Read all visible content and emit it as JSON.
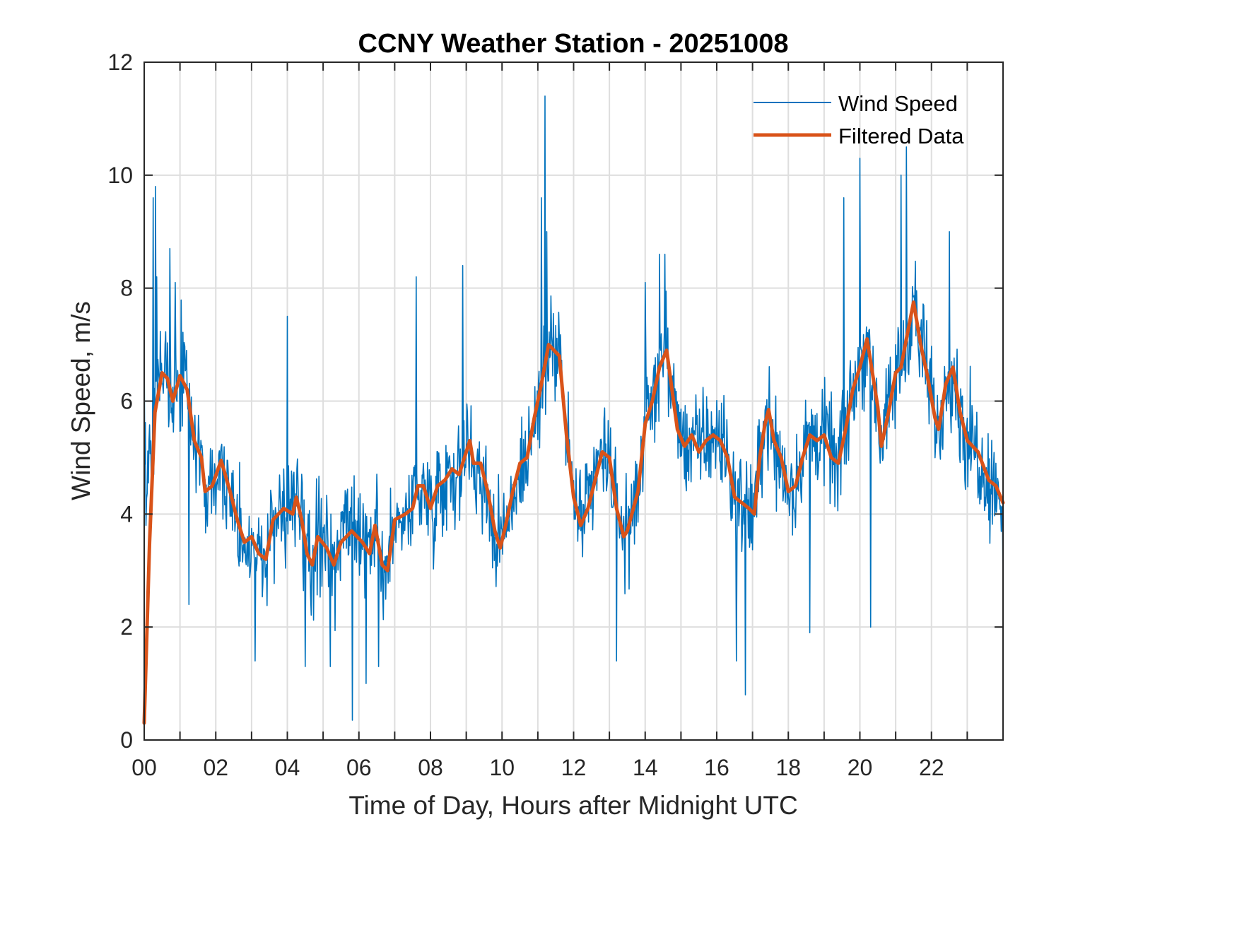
{
  "chart_data": {
    "type": "line",
    "title": "CCNY Weather Station - 20251008",
    "xlabel": "Time of Day, Hours after Midnight UTC",
    "ylabel": "Wind Speed, m/s",
    "xlim": [
      0,
      24
    ],
    "ylim": [
      0,
      12
    ],
    "grid": true,
    "legend_position": "top-right",
    "x_ticks": [
      0,
      1,
      2,
      3,
      4,
      5,
      6,
      7,
      8,
      9,
      10,
      11,
      12,
      13,
      14,
      15,
      16,
      17,
      18,
      19,
      20,
      21,
      22,
      23
    ],
    "x_tick_labels": [
      "00",
      "",
      "02",
      "",
      "04",
      "",
      "06",
      "",
      "08",
      "",
      "10",
      "",
      "12",
      "",
      "14",
      "",
      "16",
      "",
      "18",
      "",
      "20",
      "",
      "22",
      ""
    ],
    "y_ticks": [
      0,
      2,
      4,
      6,
      8,
      10,
      12
    ],
    "y_tick_labels": [
      "0",
      "2",
      "4",
      "6",
      "8",
      "10",
      "12"
    ],
    "series": [
      {
        "name": "Wind Speed",
        "color": "#0072BD",
        "style": "thin",
        "description": "raw wind speed samples (~1 per minute), high-frequency noise around the filtered trend",
        "noise_amplitude": 1.6,
        "samples_per_hour": 60,
        "notable_points": [
          {
            "x": 0.0,
            "y": 7.1
          },
          {
            "x": 0.05,
            "y": 3.8
          },
          {
            "x": 0.25,
            "y": 9.6
          },
          {
            "x": 0.32,
            "y": 9.8
          },
          {
            "x": 0.35,
            "y": 8.2
          },
          {
            "x": 0.72,
            "y": 8.7
          },
          {
            "x": 0.86,
            "y": 8.1
          },
          {
            "x": 1.25,
            "y": 2.4
          },
          {
            "x": 3.1,
            "y": 1.4
          },
          {
            "x": 4.0,
            "y": 7.5
          },
          {
            "x": 4.5,
            "y": 1.3
          },
          {
            "x": 5.2,
            "y": 1.3
          },
          {
            "x": 5.82,
            "y": 0.35
          },
          {
            "x": 6.2,
            "y": 1.0
          },
          {
            "x": 6.55,
            "y": 1.3
          },
          {
            "x": 7.6,
            "y": 8.2
          },
          {
            "x": 8.9,
            "y": 8.4
          },
          {
            "x": 11.1,
            "y": 9.6
          },
          {
            "x": 11.2,
            "y": 11.4
          },
          {
            "x": 11.25,
            "y": 9.0
          },
          {
            "x": 13.2,
            "y": 1.4
          },
          {
            "x": 14.0,
            "y": 8.1
          },
          {
            "x": 14.4,
            "y": 8.6
          },
          {
            "x": 14.55,
            "y": 8.6
          },
          {
            "x": 16.55,
            "y": 1.4
          },
          {
            "x": 16.8,
            "y": 0.8
          },
          {
            "x": 18.6,
            "y": 1.9
          },
          {
            "x": 19.55,
            "y": 9.6
          },
          {
            "x": 20.0,
            "y": 10.3
          },
          {
            "x": 20.3,
            "y": 2.0
          },
          {
            "x": 21.15,
            "y": 10.0
          },
          {
            "x": 21.3,
            "y": 10.5
          },
          {
            "x": 22.5,
            "y": 9.0
          },
          {
            "x": 24.0,
            "y": 2.7
          }
        ]
      },
      {
        "name": "Filtered Data",
        "color": "#D95319",
        "style": "thick",
        "x": [
          0.0,
          0.15,
          0.3,
          0.5,
          0.65,
          0.8,
          1.0,
          1.2,
          1.4,
          1.6,
          1.7,
          1.9,
          2.15,
          2.4,
          2.6,
          2.8,
          3.0,
          3.2,
          3.4,
          3.6,
          3.9,
          4.15,
          4.25,
          4.4,
          4.55,
          4.7,
          4.85,
          5.1,
          5.3,
          5.5,
          5.8,
          6.1,
          6.3,
          6.45,
          6.65,
          6.8,
          7.0,
          7.3,
          7.5,
          7.65,
          7.8,
          8.0,
          8.2,
          8.4,
          8.6,
          8.8,
          9.0,
          9.1,
          9.2,
          9.4,
          9.6,
          9.8,
          9.95,
          10.1,
          10.3,
          10.5,
          10.7,
          10.9,
          11.1,
          11.3,
          11.45,
          11.6,
          11.8,
          12.0,
          12.2,
          12.4,
          12.6,
          12.8,
          13.0,
          13.2,
          13.4,
          13.5,
          13.8,
          14.0,
          14.2,
          14.4,
          14.6,
          14.75,
          14.9,
          15.1,
          15.3,
          15.5,
          15.7,
          15.9,
          16.1,
          16.3,
          16.5,
          16.7,
          16.9,
          17.05,
          17.2,
          17.35,
          17.45,
          17.6,
          17.8,
          18.0,
          18.2,
          18.4,
          18.6,
          18.8,
          19.0,
          19.2,
          19.4,
          19.6,
          19.8,
          20.0,
          20.2,
          20.35,
          20.5,
          20.6,
          20.8,
          21.0,
          21.15,
          21.3,
          21.5,
          21.7,
          21.9,
          22.1,
          22.2,
          22.4,
          22.6,
          22.8,
          23.0,
          23.3,
          23.6,
          23.8,
          24.0
        ],
        "y": [
          0.3,
          3.5,
          5.8,
          6.5,
          6.4,
          6.0,
          6.45,
          6.2,
          5.3,
          5.0,
          4.4,
          4.5,
          4.95,
          4.4,
          3.9,
          3.5,
          3.6,
          3.3,
          3.2,
          3.9,
          4.1,
          4.0,
          4.3,
          3.9,
          3.3,
          3.1,
          3.6,
          3.4,
          3.1,
          3.5,
          3.7,
          3.5,
          3.3,
          3.8,
          3.1,
          3.0,
          3.9,
          4.0,
          4.1,
          4.5,
          4.5,
          4.1,
          4.5,
          4.6,
          4.8,
          4.7,
          5.1,
          5.3,
          4.9,
          4.9,
          4.4,
          3.7,
          3.4,
          3.8,
          4.4,
          4.9,
          5.0,
          5.7,
          6.3,
          7.0,
          6.9,
          6.8,
          5.4,
          4.3,
          3.8,
          4.1,
          4.6,
          5.1,
          5.0,
          4.1,
          3.6,
          3.7,
          4.4,
          5.6,
          6.0,
          6.6,
          6.9,
          6.2,
          5.5,
          5.2,
          5.4,
          5.1,
          5.3,
          5.4,
          5.3,
          5.0,
          4.3,
          4.2,
          4.1,
          4.0,
          5.0,
          5.6,
          5.85,
          5.3,
          5.0,
          4.4,
          4.5,
          5.0,
          5.4,
          5.3,
          5.4,
          5.0,
          4.9,
          5.5,
          6.2,
          6.6,
          7.1,
          6.5,
          5.9,
          5.2,
          5.8,
          6.5,
          6.6,
          7.1,
          7.75,
          7.0,
          6.4,
          5.7,
          5.5,
          6.3,
          6.6,
          5.8,
          5.3,
          5.1,
          4.6,
          4.5,
          4.2
        ]
      }
    ]
  }
}
